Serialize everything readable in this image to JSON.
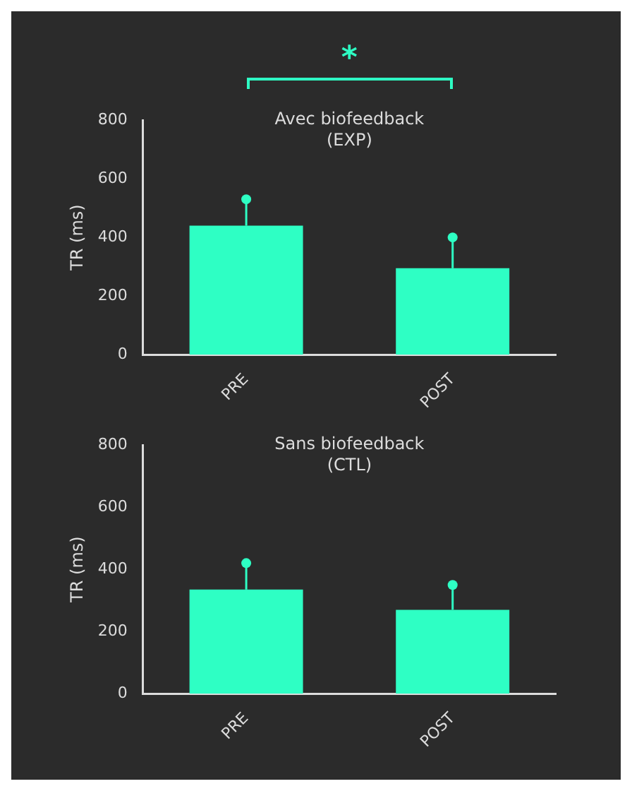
{
  "chart_data": [
    {
      "type": "bar",
      "title": "Avec biofeedback\n(EXP)",
      "ylabel": "TR (ms)",
      "categories": [
        "PRE",
        "POST"
      ],
      "ylim": [
        0,
        800
      ],
      "yticks": [
        0,
        200,
        400,
        600,
        800
      ],
      "grid": false,
      "legend": false,
      "annotations": [
        "*"
      ],
      "series": [
        {
          "type": "bar",
          "color": "#2effc4",
          "values": [
            440,
            295
          ],
          "errors": [
            [
              440,
              530
            ],
            [
              295,
              400
            ]
          ]
        },
        {
          "type": "scatter",
          "color": "#2effc4",
          "marker": "circle",
          "x": [
            "PRE",
            "POST"
          ],
          "values": [
            530,
            400
          ]
        }
      ]
    },
    {
      "type": "bar",
      "title": "Sans biofeedback\n(CTL)",
      "ylabel": "TR (ms)",
      "categories": [
        "PRE",
        "POST"
      ],
      "ylim": [
        0,
        800
      ],
      "yticks": [
        0,
        200,
        400,
        600,
        800
      ],
      "grid": false,
      "legend": false,
      "series": [
        {
          "type": "bar",
          "color": "#2effc4",
          "values": [
            335,
            270
          ],
          "errors": [
            [
              335,
              420
            ],
            [
              270,
              350
            ]
          ]
        },
        {
          "type": "scatter",
          "color": "#2effc4",
          "marker": "circle",
          "x": [
            "PRE",
            "POST"
          ],
          "values": [
            420,
            350
          ]
        }
      ]
    }
  ]
}
